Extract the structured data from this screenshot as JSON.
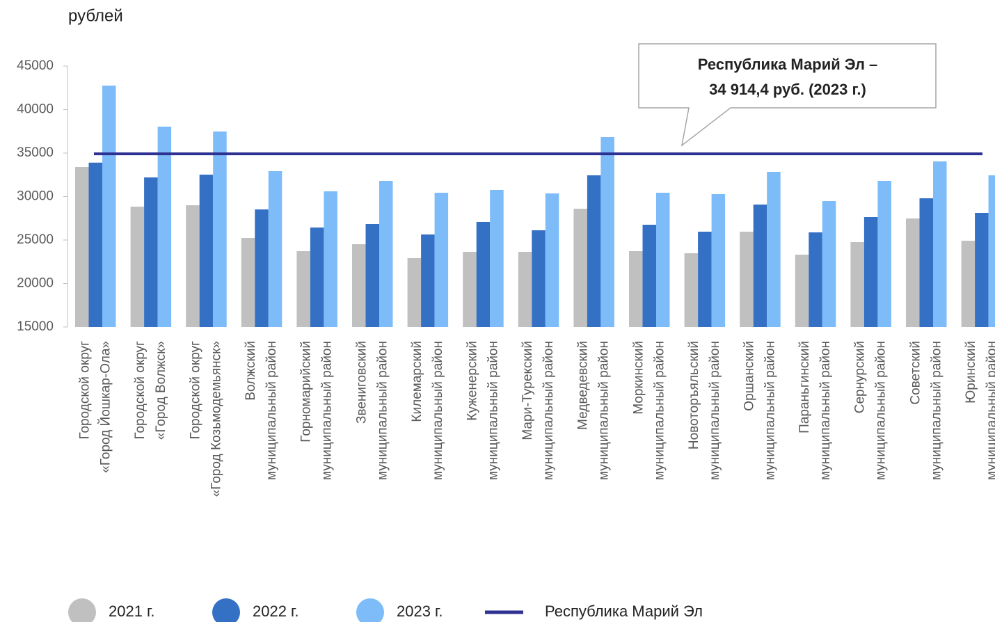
{
  "chart_data": {
    "type": "bar",
    "y_axis_label": "рублей",
    "categories": [
      [
        "Городской округ",
        "«Город Йошкар-Ола»"
      ],
      [
        "Городской округ",
        "«Город Волжск»"
      ],
      [
        "Городской округ",
        "«Город Козьмодемьянск»"
      ],
      [
        "Волжский",
        "муниципальный район"
      ],
      [
        "Горномарийский",
        "муниципальный район"
      ],
      [
        "Звениговский",
        "муниципальный район"
      ],
      [
        "Килемарский",
        "муниципальный район"
      ],
      [
        "Куженерский",
        "муниципальный район"
      ],
      [
        "Мари-Турекский",
        "муниципальный район"
      ],
      [
        "Медведевский",
        "муниципальный район"
      ],
      [
        "Моркинский",
        "муниципальный район"
      ],
      [
        "Новоторъяльский",
        "муниципальный район"
      ],
      [
        "Оршанский",
        "муниципальный район"
      ],
      [
        "Параньгинский",
        "муниципальный район"
      ],
      [
        "Сернурский",
        "муниципальный район"
      ],
      [
        "Советский",
        "муниципальный район"
      ],
      [
        "Юринский",
        "муниципальный район"
      ]
    ],
    "series": [
      {
        "name": "2021 г.",
        "color": "#c0c0c0",
        "values": [
          33400,
          28840,
          29000,
          25240,
          23720,
          24520,
          22920,
          23640,
          23640,
          28600,
          23720,
          23480,
          25960,
          23320,
          24760,
          27480,
          24920
        ]
      },
      {
        "name": "2022 г.",
        "color": "#3470c4",
        "values": [
          33900,
          32200,
          32520,
          28520,
          26440,
          26840,
          25640,
          27080,
          26120,
          32440,
          26760,
          25960,
          29080,
          25880,
          27640,
          29800,
          28120
        ]
      },
      {
        "name": "2023 г.",
        "color": "#7dbcf8",
        "values": [
          42760,
          38040,
          37480,
          32920,
          30600,
          31800,
          30440,
          30760,
          30360,
          36840,
          30440,
          30280,
          32840,
          29480,
          31800,
          34040,
          32440
        ]
      }
    ],
    "reference_line": {
      "name": "Республика Марий Эл",
      "value": 34914.4,
      "color": "#2e3192"
    },
    "annotation": [
      "Республика Марий Эл –",
      "34 914,4 руб. (2023 г.)"
    ],
    "ylim": [
      15000,
      45000
    ],
    "yticks": [
      15000,
      20000,
      25000,
      30000,
      35000,
      40000,
      45000
    ]
  }
}
